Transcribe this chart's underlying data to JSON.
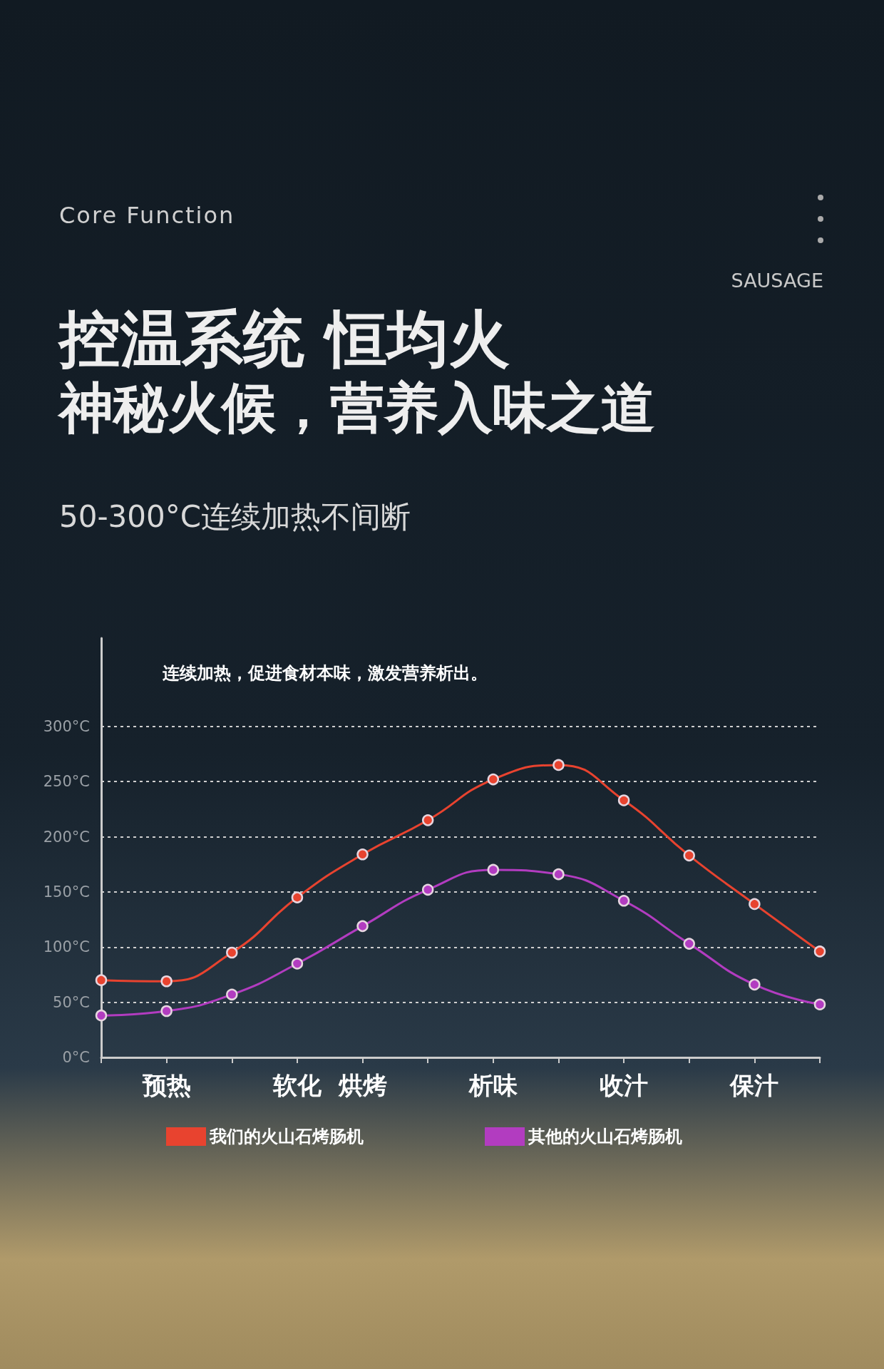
{
  "chart_data": {
    "type": "line",
    "title": "控温系统 恒均火",
    "subtitle": "神秘火候，营养入味之道",
    "annotations": [
      "Core Function",
      "SAUSAGE",
      "50-300°C连续加热不间断",
      "连续加热，促进食材本味，激发营养析出。"
    ],
    "categories": [
      null,
      "预热",
      null,
      "软化",
      "烘烤",
      null,
      "析味",
      null,
      "收汁",
      null,
      "保汁",
      null
    ],
    "ylim": [
      0,
      380
    ],
    "yticks": [
      {
        "value": 0,
        "label": "0°C"
      },
      {
        "value": 50,
        "label": "50°C"
      },
      {
        "value": 100,
        "label": "100°C"
      },
      {
        "value": 150,
        "label": "150°C"
      },
      {
        "value": 200,
        "label": "200°C"
      },
      {
        "value": 250,
        "label": "250°C"
      },
      {
        "value": 300,
        "label": "300°C"
      }
    ],
    "series": [
      {
        "name": "我们的火山石烤肠机",
        "color": "#e8432f",
        "values": [
          70,
          69,
          95,
          145,
          184,
          215,
          252,
          265,
          233,
          183,
          139,
          96
        ]
      },
      {
        "name": "其他的火山石烤肠机",
        "color": "#b23cc0",
        "values": [
          38,
          42,
          57,
          85,
          119,
          152,
          170,
          166,
          142,
          103,
          66,
          48
        ]
      }
    ],
    "grid": "y",
    "legend": "bottom",
    "marker": "circle",
    "line_style": "solid"
  }
}
